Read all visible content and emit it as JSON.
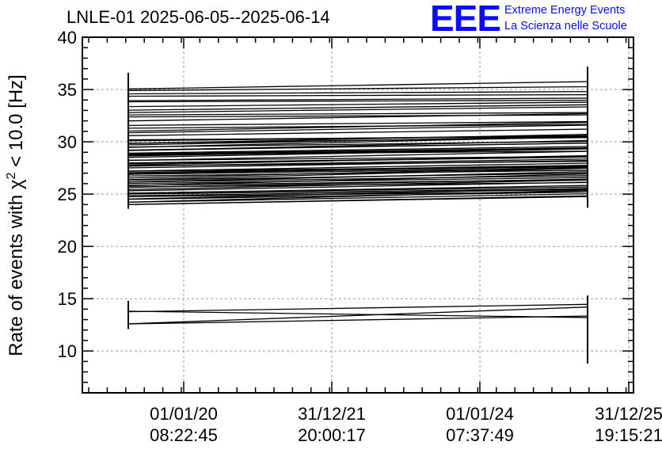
{
  "title": "LNLE-01 2025-06-05--2025-06-14",
  "logo": {
    "mark": "EEE",
    "line1": "Extreme Energy Events",
    "line2": "La Scienza nelle Scuole",
    "color": "#0a0aff"
  },
  "chart_data": {
    "type": "line",
    "ylabel_prefix": "Rate of events with χ",
    "ylabel_sup": "2",
    "ylabel_suffix": " < 10.0 [Hz]",
    "ylim": [
      6,
      40
    ],
    "yticks": [
      10,
      15,
      20,
      25,
      30,
      35,
      40
    ],
    "grid": true,
    "x_ticks": [
      {
        "date": "01/01/20",
        "time": "08:22:45"
      },
      {
        "date": "31/12/21",
        "time": "20:00:17"
      },
      {
        "date": "01/01/24",
        "time": "07:37:49"
      },
      {
        "date": "31/12/25",
        "time": "19:15:21"
      }
    ],
    "x_points": [
      "2019-03",
      "2025-06"
    ],
    "series_bands": [
      {
        "start": [
          24.0,
          35.2
        ],
        "end": [
          24.8,
          35.6
        ],
        "count": 70
      },
      {
        "start": [
          12.6,
          13.8
        ],
        "end": [
          13.2,
          14.2
        ],
        "count": 2
      }
    ],
    "error_bars": [
      {
        "x": "2019-03",
        "low": 23.6,
        "high": 36.6
      },
      {
        "x": "2019-03",
        "low": 12.1,
        "high": 14.8
      },
      {
        "x": "2025-06",
        "low": 23.7,
        "high": 37.2
      },
      {
        "x": "2025-06",
        "low": 8.8,
        "high": 15.3
      }
    ]
  }
}
